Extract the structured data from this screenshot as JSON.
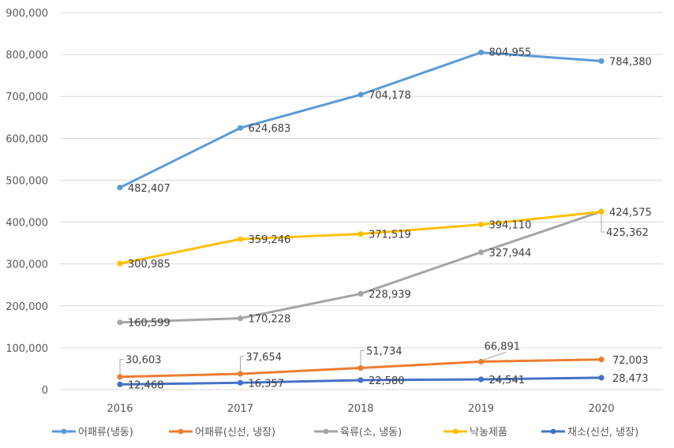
{
  "chart_data": {
    "type": "line",
    "title": "",
    "xlabel": "",
    "ylabel": "",
    "x": [
      "2016",
      "2017",
      "2018",
      "2019",
      "2020"
    ],
    "ylim": [
      0,
      900000
    ],
    "yticks": [
      0,
      100000,
      200000,
      300000,
      400000,
      500000,
      600000,
      700000,
      800000,
      900000
    ],
    "ytick_labels": [
      "0",
      "100,000",
      "200,000",
      "300,000",
      "400,000",
      "500,000",
      "600,000",
      "700,000",
      "800,000",
      "900,000"
    ],
    "grid": true,
    "legend_position": "bottom",
    "series": [
      {
        "name": "어패류(냉동)",
        "color": "#5b9bd5",
        "values": [
          482407,
          624683,
          704178,
          804955,
          784380
        ],
        "labels": [
          "482,407",
          "624,683",
          "704,178",
          "804,955",
          "784,380"
        ]
      },
      {
        "name": "어패류(신선, 냉장)",
        "color": "#ed7d31",
        "values": [
          30603,
          37654,
          51734,
          66891,
          72003
        ],
        "labels": [
          "30,603",
          "37,654",
          "51,734",
          "66,891",
          "72,003"
        ]
      },
      {
        "name": "육류(소, 냉동)",
        "color": "#a5a5a5",
        "values": [
          160599,
          170228,
          228939,
          327944,
          425362
        ],
        "labels": [
          "160,599",
          "170,228",
          "228,939",
          "327,944",
          "425,362"
        ]
      },
      {
        "name": "낙농제품",
        "color": "#ffc000",
        "values": [
          300985,
          359246,
          371519,
          394110,
          424575
        ],
        "labels": [
          "300,985",
          "359,246",
          "371,519",
          "394,110",
          "424,575"
        ]
      },
      {
        "name": "채소(신선, 냉장)",
        "color": "#4472c4",
        "values": [
          12468,
          16357,
          22580,
          24541,
          28473
        ],
        "labels": [
          "12,468",
          "16,357",
          "22,580",
          "24,541",
          "28,473"
        ]
      }
    ]
  }
}
